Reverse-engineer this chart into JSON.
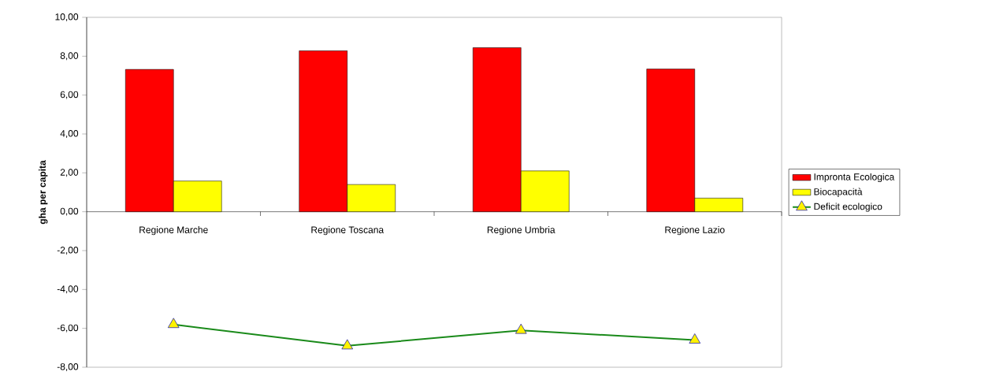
{
  "chart_data": {
    "type": "bar",
    "ylabel": "gha per capita",
    "categories": [
      "Regione Marche",
      "Regione Toscana",
      "Regione Umbria",
      "Regione Lazio"
    ],
    "series": [
      {
        "name": "Impronta Ecologica",
        "color": "#ff0000",
        "values": [
          7.32,
          8.28,
          8.44,
          7.34
        ]
      },
      {
        "name": "Biocapacità",
        "color": "#ffff00",
        "values": [
          1.58,
          1.4,
          2.1,
          0.7
        ]
      },
      {
        "name": "Deficit ecologico",
        "type": "line",
        "color": "#1a8a1a",
        "marker": "triangle",
        "values": [
          -5.8,
          -6.9,
          -6.1,
          -6.6
        ]
      }
    ],
    "ylim": [
      -8,
      10
    ],
    "yticks": [
      {
        "value": -8,
        "label": "-8,00"
      },
      {
        "value": -6,
        "label": "-6,00"
      },
      {
        "value": -4,
        "label": "-4,00"
      },
      {
        "value": -2,
        "label": "-2,00"
      },
      {
        "value": 0,
        "label": "0,00"
      },
      {
        "value": 2,
        "label": "2,00"
      },
      {
        "value": 4,
        "label": "4,00"
      },
      {
        "value": 6,
        "label": "6,00"
      },
      {
        "value": 8,
        "label": "8,00"
      },
      {
        "value": 10,
        "label": "10,00"
      }
    ],
    "legend": "right",
    "grid": false
  }
}
